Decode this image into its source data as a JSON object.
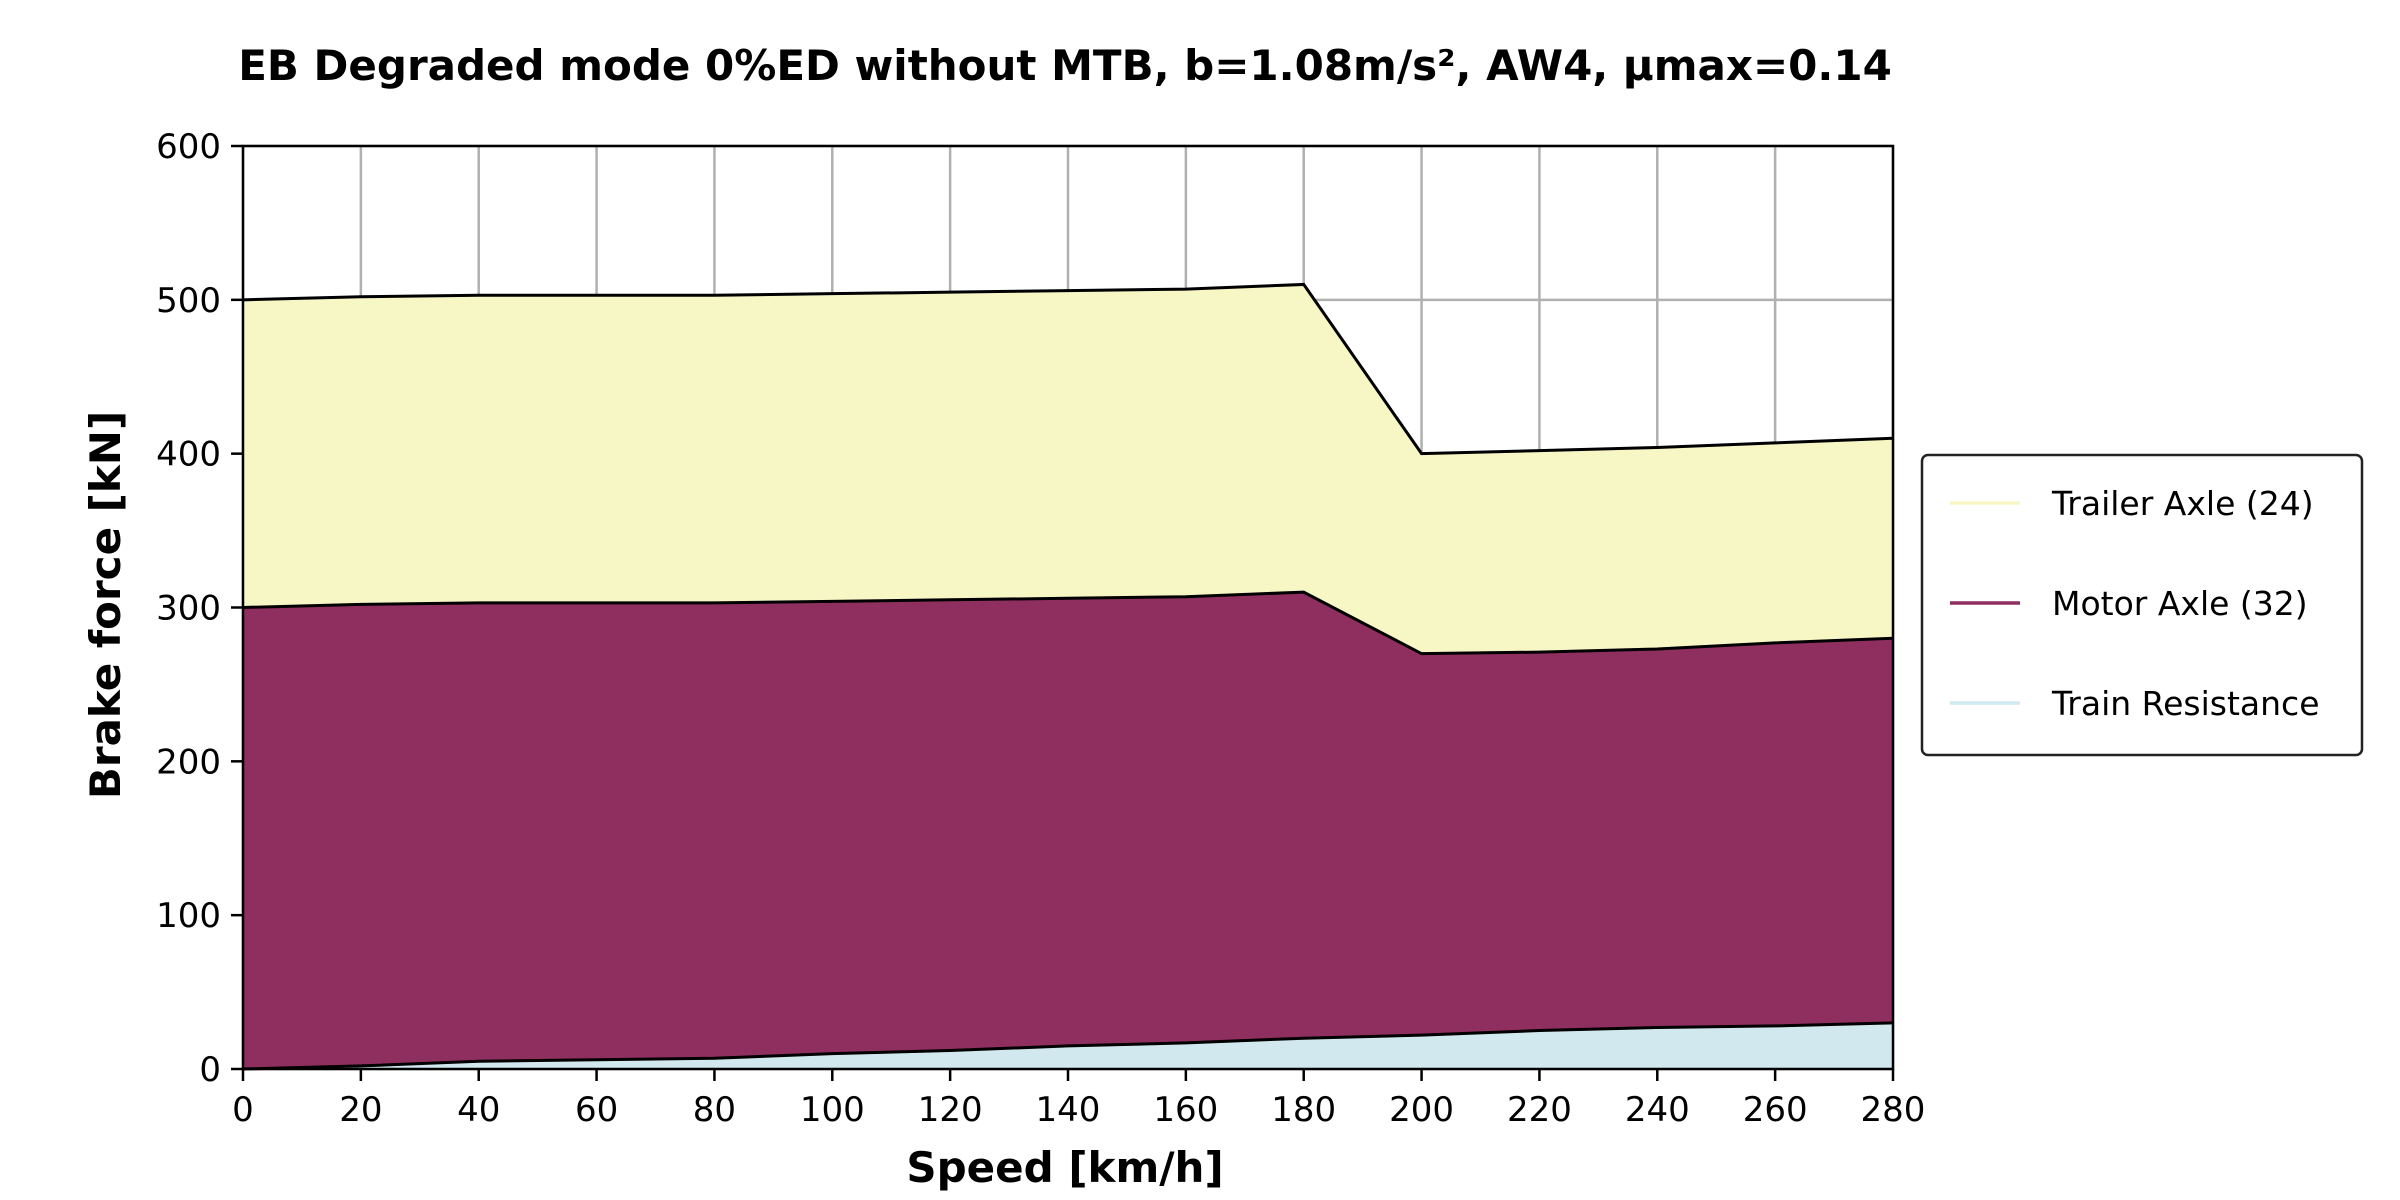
{
  "chart_data": {
    "type": "area",
    "stacked": true,
    "title": "EB Degraded mode 0%ED without MTB, b=1.08m/s², AW4, µmax=0.14",
    "xlabel": "Speed [km/h]",
    "ylabel": "Brake force [kN]",
    "xlim": [
      0,
      280
    ],
    "ylim": [
      0,
      600
    ],
    "xticks": [
      0,
      20,
      40,
      60,
      80,
      100,
      120,
      140,
      160,
      180,
      200,
      220,
      240,
      260,
      280
    ],
    "yticks": [
      0,
      100,
      200,
      300,
      400,
      500,
      600
    ],
    "grid": true,
    "legend_position": "right",
    "x": [
      0,
      20,
      40,
      60,
      80,
      100,
      120,
      140,
      160,
      180,
      200,
      220,
      240,
      260,
      280
    ],
    "series": [
      {
        "name": "Train Resistance",
        "color": "#d1e9ee",
        "values": [
          0,
          2,
          5,
          6,
          7,
          10,
          12,
          15,
          17,
          20,
          22,
          25,
          27,
          28,
          30
        ]
      },
      {
        "name": "Motor Axle (32)",
        "color": "#8f2f5f",
        "values": [
          300,
          300,
          298,
          297,
          296,
          294,
          293,
          291,
          290,
          290,
          248,
          246,
          246,
          249,
          250
        ]
      },
      {
        "name": "Trailer Axle (24)",
        "color": "#f7f7c6",
        "values": [
          200,
          200,
          200,
          200,
          200,
          200,
          200,
          200,
          200,
          200,
          130,
          131,
          131,
          130,
          130
        ]
      }
    ],
    "legend_order": [
      "Trailer Axle (24)",
      "Motor Axle (32)",
      "Train Resistance"
    ]
  }
}
